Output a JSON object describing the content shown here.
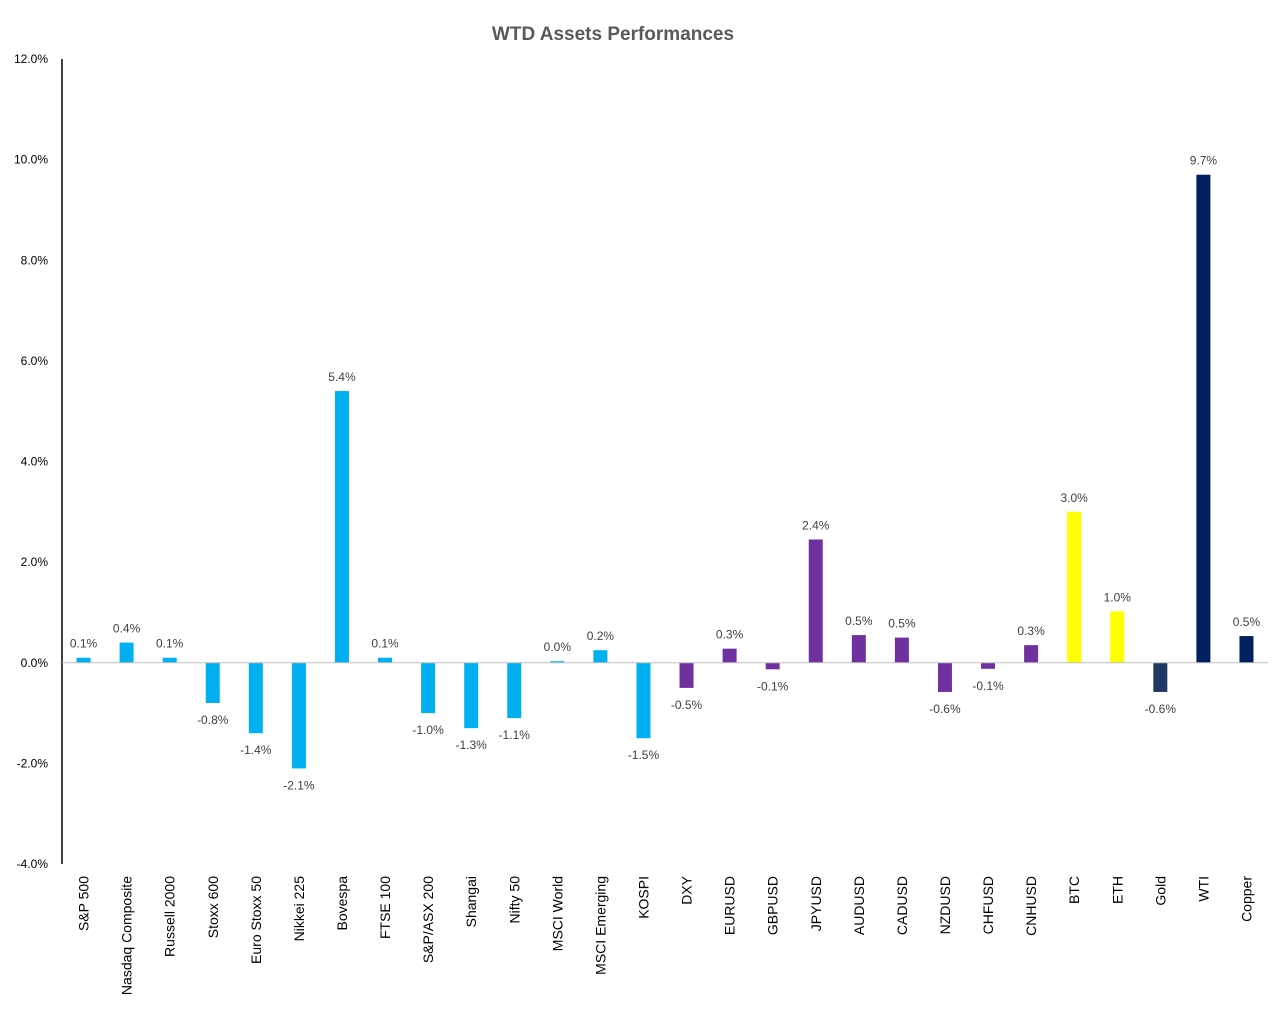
{
  "chart_data": {
    "type": "bar",
    "title": "WTD Assets Performances",
    "xlabel": "",
    "ylabel": "",
    "ylim": [
      -4.0,
      12.0
    ],
    "yticks": [
      -4.0,
      -2.0,
      0.0,
      2.0,
      4.0,
      6.0,
      8.0,
      10.0,
      12.0
    ],
    "ytick_labels": [
      "-4.0%",
      "-2.0%",
      "0.0%",
      "2.0%",
      "4.0%",
      "6.0%",
      "8.0%",
      "10.0%",
      "12.0%"
    ],
    "grid": false,
    "legend": "none",
    "categories": [
      "S&P 500",
      "Nasdaq Composite",
      "Russell 2000",
      "Stoxx 600",
      "Euro Stoxx 50",
      "Nikkei 225",
      "Bovespa",
      "FTSE 100",
      "S&P/ASX 200",
      "Shangai",
      "Nifty 50",
      "MSCI World",
      "MSCI Emerging",
      "KOSPI",
      "DXY",
      "EURUSD",
      "GBPUSD",
      "JPYUSD",
      "AUDUSD",
      "CADUSD",
      "NZDUSD",
      "CHFUSD",
      "CNHUSD",
      "BTC",
      "ETH",
      "Gold",
      "WTI",
      "Copper"
    ],
    "values": [
      0.1,
      0.4,
      0.1,
      -0.8,
      -1.4,
      -2.1,
      5.4,
      0.1,
      -1.0,
      -1.3,
      -1.1,
      0.03,
      0.25,
      -1.5,
      -0.5,
      0.28,
      -0.13,
      2.45,
      0.55,
      0.5,
      -0.58,
      -0.12,
      0.35,
      3.0,
      1.02,
      -0.58,
      9.7,
      0.53
    ],
    "data_labels": [
      "0.1%",
      "0.4%",
      "0.1%",
      "-0.8%",
      "-1.4%",
      "-2.1%",
      "5.4%",
      "0.1%",
      "-1.0%",
      "-1.3%",
      "-1.1%",
      "0.0%",
      "0.2%",
      "-1.5%",
      "-0.5%",
      "0.3%",
      "-0.1%",
      "2.4%",
      "0.5%",
      "0.5%",
      "-0.6%",
      "-0.1%",
      "0.3%",
      "3.0%",
      "1.0%",
      "-0.6%",
      "9.7%",
      "0.5%"
    ],
    "colors": [
      "#00B0F0",
      "#00B0F0",
      "#00B0F0",
      "#00B0F0",
      "#00B0F0",
      "#00B0F0",
      "#00B0F0",
      "#00B0F0",
      "#00B0F0",
      "#00B0F0",
      "#00B0F0",
      "#00B0F0",
      "#00B0F0",
      "#00B0F0",
      "#7030A0",
      "#7030A0",
      "#7030A0",
      "#7030A0",
      "#7030A0",
      "#7030A0",
      "#7030A0",
      "#7030A0",
      "#7030A0",
      "#FFFF00",
      "#FFFF00",
      "#203864",
      "#002060",
      "#002060"
    ]
  }
}
